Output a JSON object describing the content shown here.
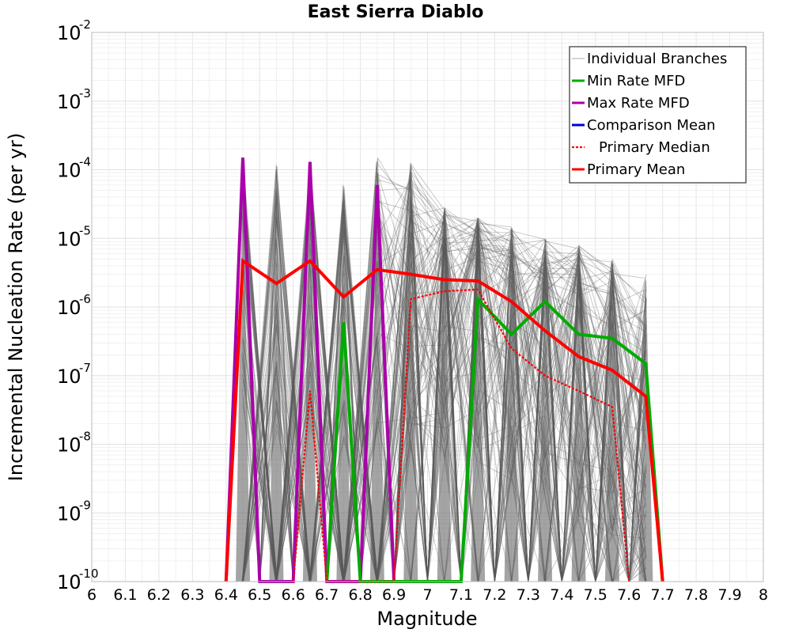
{
  "chart_data": {
    "type": "line",
    "title": "East Sierra Diablo",
    "xlabel": "Magnitude",
    "ylabel": "Incremental Nucleation Rate (per yr)",
    "xlim": [
      6,
      8
    ],
    "ylim": [
      1e-10,
      0.01
    ],
    "yscale": "log",
    "grid": true,
    "legend_position": "top-right",
    "x_ticks": [
      "6",
      "6.1",
      "6.2",
      "6.3",
      "6.4",
      "6.5",
      "6.6",
      "6.7",
      "6.8",
      "6.9",
      "7",
      "7.1",
      "7.2",
      "7.3",
      "7.4",
      "7.5",
      "7.6",
      "7.7",
      "7.8",
      "7.9",
      "8"
    ],
    "y_ticks": [
      {
        "base": "10",
        "exp": "-10"
      },
      {
        "base": "10",
        "exp": "-9"
      },
      {
        "base": "10",
        "exp": "-8"
      },
      {
        "base": "10",
        "exp": "-7"
      },
      {
        "base": "10",
        "exp": "-6"
      },
      {
        "base": "10",
        "exp": "-5"
      },
      {
        "base": "10",
        "exp": "-4"
      },
      {
        "base": "10",
        "exp": "-3"
      },
      {
        "base": "10",
        "exp": "-2"
      }
    ],
    "series": [
      {
        "name": "Individual Branches",
        "color": "#595959",
        "style": "thin-gray-band",
        "x": [
          6.45,
          6.55,
          6.65,
          6.75,
          6.85,
          6.95,
          7.05,
          7.15,
          7.25,
          7.35,
          7.45,
          7.55,
          7.65
        ],
        "upper": [
          0.00015,
          0.00013,
          0.00013,
          6.5e-05,
          0.00016,
          0.00013,
          3e-05,
          2e-05,
          1.5e-05,
          1e-05,
          8e-06,
          5e-06,
          3e-06
        ],
        "lower": [
          1e-10,
          1e-10,
          1e-10,
          1e-10,
          1e-10,
          1e-10,
          1e-10,
          1e-10,
          1e-10,
          1e-10,
          1e-10,
          1e-10,
          1e-10
        ],
        "typical": [
          2e-05,
          1.5e-05,
          2e-05,
          1e-05,
          1.5e-05,
          8e-06,
          6e-06,
          4e-06,
          2.5e-06,
          1.5e-06,
          8e-07,
          4e-07,
          1.5e-07
        ]
      },
      {
        "name": "Min Rate MFD",
        "color": "#00aa00",
        "x": [
          6.7,
          6.75,
          6.8,
          7.1,
          7.15,
          7.25,
          7.35,
          7.45,
          7.55,
          7.65,
          7.7
        ],
        "values": [
          1e-10,
          6e-07,
          1e-10,
          1e-10,
          1.3e-06,
          4e-07,
          1.2e-06,
          4e-07,
          3.5e-07,
          1.5e-07,
          1e-10
        ]
      },
      {
        "name": "Max Rate MFD",
        "color": "#aa00aa",
        "x": [
          6.4,
          6.45,
          6.5,
          6.6,
          6.65,
          6.7,
          6.8,
          6.85,
          6.9
        ],
        "values": [
          1e-10,
          0.00015,
          1e-10,
          1e-10,
          0.00013,
          1e-10,
          1e-10,
          6e-05,
          1e-10
        ]
      },
      {
        "name": "Comparison Mean",
        "color": "#0000dd",
        "x": [],
        "values": []
      },
      {
        "name": "Primary Median",
        "color": "#ff0000",
        "dashed": true,
        "x": [
          6.6,
          6.65,
          6.7,
          6.9,
          6.95,
          7.05,
          7.15,
          7.25,
          7.35,
          7.45,
          7.55,
          7.6
        ],
        "values": [
          1e-10,
          6e-08,
          1e-10,
          1e-10,
          1.3e-06,
          1.7e-06,
          1.8e-06,
          2.5e-07,
          1e-07,
          6e-08,
          3.5e-08,
          1e-10
        ]
      },
      {
        "name": "Primary Mean",
        "color": "#ff0000",
        "x": [
          6.4,
          6.45,
          6.55,
          6.65,
          6.75,
          6.85,
          6.95,
          7.05,
          7.15,
          7.25,
          7.35,
          7.45,
          7.55,
          7.65,
          7.7
        ],
        "values": [
          1e-10,
          4.7e-06,
          2.2e-06,
          4.7e-06,
          1.4e-06,
          3.5e-06,
          3e-06,
          2.5e-06,
          2.4e-06,
          1.2e-06,
          4.5e-07,
          1.9e-07,
          1.2e-07,
          5e-08,
          1e-10
        ]
      }
    ]
  }
}
